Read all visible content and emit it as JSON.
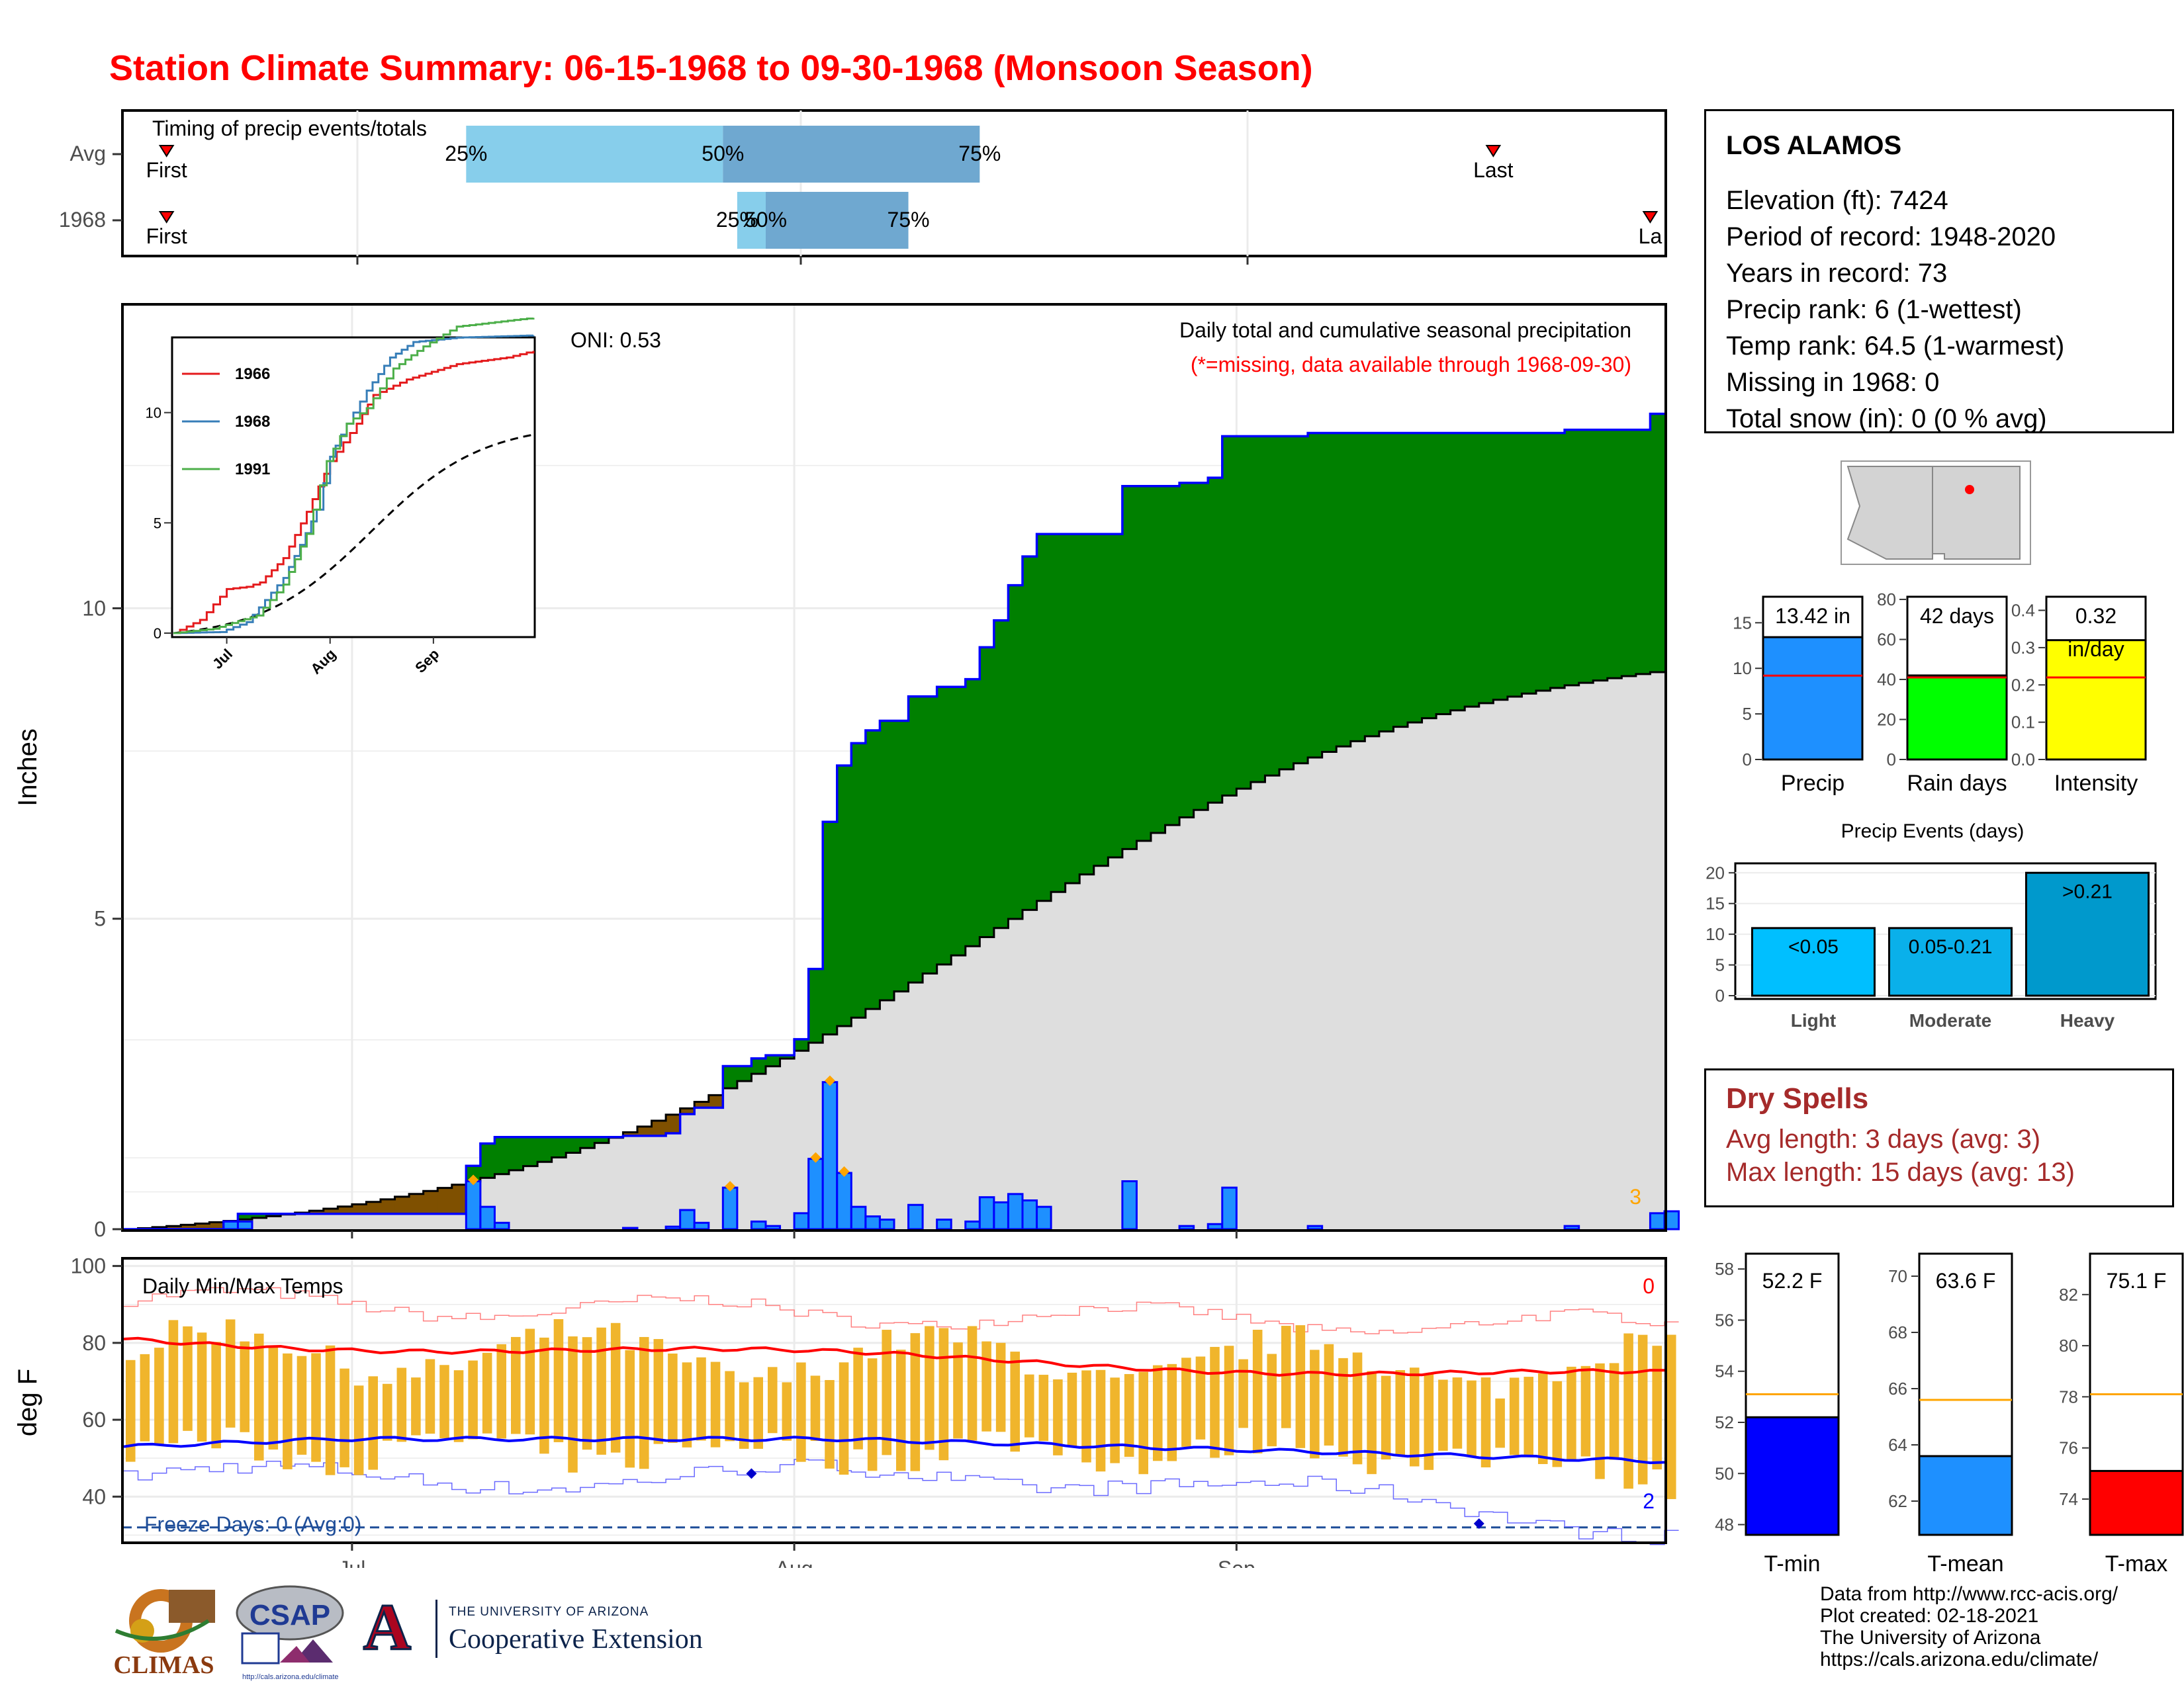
{
  "title": "Station Climate Summary: 06-15-1968 to 09-30-1968 (Monsoon Season)",
  "timing_panel": {
    "label": "Timing of precip events/totals",
    "rows": [
      {
        "label": "Avg",
        "p25": "25%",
        "p50": "50%",
        "p75": "75%",
        "first": "First",
        "last": "Last",
        "p25_date": "1968-07-09",
        "p50_date": "1968-07-27",
        "p75_date": "1968-08-14",
        "first_date": "1968-06-18",
        "last_date": "1968-09-19"
      },
      {
        "label": "1968",
        "p25": "25%",
        "p50": "50%",
        "p75": "75%",
        "first": "First",
        "last": "La",
        "p25_date": "1968-07-28",
        "p50_date": "1968-07-30",
        "p75_date": "1968-08-09",
        "first_date": "1968-06-18",
        "last_date": "1968-09-30"
      }
    ]
  },
  "main_chart": {
    "ylabel": "Inches",
    "yticks": [
      "0",
      "5",
      "10"
    ],
    "xticks": [
      "Jul",
      "Aug",
      "Sep"
    ],
    "oni": "ONI: 0.53",
    "caption": "Daily total and cumulative seasonal precipitation",
    "missing_note": "(*=missing, data available through 1968-09-30)",
    "count_label": "3",
    "colors": {
      "above": "#008000",
      "below": "#7f5000",
      "avg": "#dedede",
      "bars": "#1e90ff",
      "line": "#0000ff"
    }
  },
  "inset": {
    "legend": [
      "1966",
      "1968",
      "1991"
    ],
    "colors": [
      "#e41a1c",
      "#377eb8",
      "#4daf4a"
    ],
    "yticks": [
      "0",
      "5",
      "10"
    ],
    "xticks": [
      "Jul",
      "Aug",
      "Sep"
    ]
  },
  "temp_chart": {
    "label": "Daily Min/Max Temps",
    "ylabel": "deg F",
    "yticks": [
      "40",
      "60",
      "80",
      "100"
    ],
    "freeze_label": "Freeze Days: 0 (Avg:0)",
    "top_count": "0",
    "bottom_count": "2"
  },
  "station": {
    "name": "LOS ALAMOS",
    "lines": [
      "Elevation (ft): 7424",
      "Period of record: 1948-2020",
      "Years in record: 73",
      "Precip rank: 6 (1-wettest)",
      "Temp rank: 64.5 (1-warmest)",
      "Missing in 1968: 0",
      "Total snow (in): 0 (0 % avg)"
    ]
  },
  "summary_bars": [
    {
      "label": "Precip",
      "value_label": "13.42 in",
      "value": 13.42,
      "avg": 9.2,
      "ylim": [
        0,
        18
      ],
      "ticks": [
        "0",
        "5",
        "10",
        "15"
      ],
      "color": "#1e90ff"
    },
    {
      "label": "Rain days",
      "value_label": "42 days",
      "value": 42,
      "avg": 41,
      "ylim": [
        0,
        82
      ],
      "ticks": [
        "0",
        "20",
        "40",
        "60",
        "80"
      ],
      "color": "#00ff00"
    },
    {
      "label": "Intensity",
      "value_label": "0.32",
      "value_label2": "in/day",
      "value": 0.32,
      "avg": 0.22,
      "ylim": [
        0,
        0.44
      ],
      "ticks": [
        "0.0",
        "0.1",
        "0.2",
        "0.3",
        "0.4"
      ],
      "color": "#ffff00"
    }
  ],
  "events": {
    "title": "Precip Events (days)",
    "yticks": [
      "0",
      "5",
      "10",
      "15",
      "20"
    ],
    "bars": [
      {
        "category": "Light",
        "label": "<0.05",
        "value": 11,
        "color": "#00bfff"
      },
      {
        "category": "Moderate",
        "label": "0.05-0.21",
        "value": 11,
        "color": "#0ab0ea"
      },
      {
        "category": "Heavy",
        "label": ">0.21",
        "value": 20,
        "color": "#0099cc"
      }
    ]
  },
  "dry_spells": {
    "title": "Dry Spells",
    "avg_line": "Avg length: 3 days (avg: 3)",
    "max_line": "Max length: 15 days (avg: 13)"
  },
  "temp_bars": [
    {
      "label": "T-min",
      "value_label": "52.2 F",
      "value": 52.2,
      "avg": 53.1,
      "ylim": [
        47.6,
        58.6
      ],
      "ticks": [
        "48",
        "50",
        "52",
        "54",
        "56",
        "58"
      ],
      "color": "#0000ff"
    },
    {
      "label": "T-mean",
      "value_label": "63.6 F",
      "value": 63.6,
      "avg": 65.6,
      "ylim": [
        60.8,
        70.8
      ],
      "ticks": [
        "62",
        "64",
        "66",
        "68",
        "70"
      ],
      "color": "#1e90ff"
    },
    {
      "label": "T-max",
      "value_label": "75.1 F",
      "value": 75.1,
      "avg": 78.1,
      "ylim": [
        72.6,
        83.6
      ],
      "ticks": [
        "74",
        "76",
        "78",
        "80",
        "82"
      ],
      "color": "#ff0000"
    }
  ],
  "footer": {
    "lines": [
      "Data from http://www.rcc-acis.org/",
      "Plot created: 02-18-2021",
      "The University of Arizona",
      "https://cals.arizona.edu/climate/"
    ]
  },
  "logos": {
    "climas": "CLIMAS",
    "csap": "CSAP",
    "csap_url": "http://cals.arizona.edu/climate",
    "ua_small": "THE UNIVERSITY OF ARIZONA",
    "ua_big": "Cooperative Extension",
    "ua_mark": "A"
  }
}
